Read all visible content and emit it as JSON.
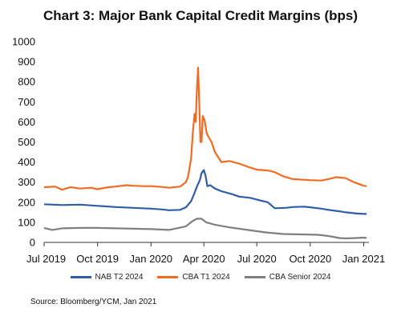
{
  "title": "Chart 3: Major Bank Capital Credit Margins (bps)",
  "source": "Source: Bloomberg/YCM, Jan 2021",
  "chart_data": {
    "type": "line",
    "title": "Chart 3: Major Bank Capital Credit Margins (bps)",
    "xlabel": "",
    "ylabel": "",
    "ylim": [
      0,
      1000
    ],
    "yticks": [
      0,
      100,
      200,
      300,
      400,
      500,
      600,
      700,
      800,
      900,
      1000
    ],
    "xlim": [
      "2019-07-01",
      "2021-01-10"
    ],
    "xticks": [
      {
        "date": "2019-07-01",
        "label": "Jul 2019"
      },
      {
        "date": "2019-10-01",
        "label": "Oct 2019"
      },
      {
        "date": "2020-01-01",
        "label": "Jan 2020"
      },
      {
        "date": "2020-04-01",
        "label": "Apr 2020"
      },
      {
        "date": "2020-07-01",
        "label": "Jul 2020"
      },
      {
        "date": "2020-10-01",
        "label": "Oct 2020"
      },
      {
        "date": "2021-01-01",
        "label": "Jan 2021"
      }
    ],
    "grid": false,
    "legend_position": "bottom",
    "series": [
      {
        "name": "NAB T2 2024",
        "color": "#2e5ea8",
        "points": [
          [
            "2019-07-01",
            190
          ],
          [
            "2019-08-01",
            186
          ],
          [
            "2019-09-01",
            188
          ],
          [
            "2019-10-01",
            182
          ],
          [
            "2019-11-01",
            176
          ],
          [
            "2019-12-01",
            172
          ],
          [
            "2020-01-01",
            168
          ],
          [
            "2020-01-20",
            164
          ],
          [
            "2020-02-01",
            160
          ],
          [
            "2020-02-20",
            162
          ],
          [
            "2020-03-01",
            175
          ],
          [
            "2020-03-10",
            205
          ],
          [
            "2020-03-15",
            240
          ],
          [
            "2020-03-20",
            278
          ],
          [
            "2020-03-25",
            310
          ],
          [
            "2020-03-28",
            345
          ],
          [
            "2020-04-01",
            360
          ],
          [
            "2020-04-04",
            330
          ],
          [
            "2020-04-07",
            280
          ],
          [
            "2020-04-12",
            285
          ],
          [
            "2020-04-20",
            268
          ],
          [
            "2020-05-01",
            255
          ],
          [
            "2020-05-20",
            240
          ],
          [
            "2020-06-01",
            228
          ],
          [
            "2020-06-20",
            222
          ],
          [
            "2020-07-01",
            213
          ],
          [
            "2020-07-20",
            200
          ],
          [
            "2020-08-01",
            170
          ],
          [
            "2020-08-20",
            172
          ],
          [
            "2020-09-01",
            176
          ],
          [
            "2020-09-20",
            178
          ],
          [
            "2020-10-01",
            175
          ],
          [
            "2020-10-20",
            168
          ],
          [
            "2020-11-01",
            162
          ],
          [
            "2020-11-20",
            155
          ],
          [
            "2020-12-01",
            150
          ],
          [
            "2020-12-20",
            144
          ],
          [
            "2021-01-01",
            142
          ],
          [
            "2021-01-06",
            142
          ]
        ]
      },
      {
        "name": "CBA T1 2024",
        "color": "#f26b21",
        "points": [
          [
            "2019-07-01",
            275
          ],
          [
            "2019-07-20",
            278
          ],
          [
            "2019-08-01",
            262
          ],
          [
            "2019-08-15",
            275
          ],
          [
            "2019-09-01",
            268
          ],
          [
            "2019-09-20",
            272
          ],
          [
            "2019-10-01",
            265
          ],
          [
            "2019-10-20",
            275
          ],
          [
            "2019-11-01",
            278
          ],
          [
            "2019-11-20",
            285
          ],
          [
            "2019-12-01",
            282
          ],
          [
            "2019-12-20",
            280
          ],
          [
            "2020-01-01",
            280
          ],
          [
            "2020-01-20",
            276
          ],
          [
            "2020-02-01",
            272
          ],
          [
            "2020-02-20",
            278
          ],
          [
            "2020-03-01",
            300
          ],
          [
            "2020-03-05",
            330
          ],
          [
            "2020-03-10",
            420
          ],
          [
            "2020-03-13",
            550
          ],
          [
            "2020-03-16",
            640
          ],
          [
            "2020-03-18",
            600
          ],
          [
            "2020-03-20",
            760
          ],
          [
            "2020-03-22",
            870
          ],
          [
            "2020-03-24",
            700
          ],
          [
            "2020-03-26",
            500
          ],
          [
            "2020-03-28",
            500
          ],
          [
            "2020-03-30",
            630
          ],
          [
            "2020-04-02",
            610
          ],
          [
            "2020-04-06",
            540
          ],
          [
            "2020-04-10",
            520
          ],
          [
            "2020-04-14",
            500
          ],
          [
            "2020-04-20",
            450
          ],
          [
            "2020-05-01",
            400
          ],
          [
            "2020-05-15",
            405
          ],
          [
            "2020-06-01",
            392
          ],
          [
            "2020-06-20",
            372
          ],
          [
            "2020-07-01",
            362
          ],
          [
            "2020-07-20",
            358
          ],
          [
            "2020-08-01",
            350
          ],
          [
            "2020-08-15",
            330
          ],
          [
            "2020-09-01",
            315
          ],
          [
            "2020-09-20",
            312
          ],
          [
            "2020-10-01",
            310
          ],
          [
            "2020-10-20",
            308
          ],
          [
            "2020-11-01",
            315
          ],
          [
            "2020-11-15",
            325
          ],
          [
            "2020-12-01",
            320
          ],
          [
            "2020-12-15",
            300
          ],
          [
            "2021-01-01",
            282
          ],
          [
            "2021-01-06",
            280
          ]
        ]
      },
      {
        "name": "CBA Senior 2024",
        "color": "#7f7f7f",
        "points": [
          [
            "2019-07-01",
            72
          ],
          [
            "2019-07-15",
            62
          ],
          [
            "2019-08-01",
            70
          ],
          [
            "2019-09-01",
            72
          ],
          [
            "2019-10-01",
            72
          ],
          [
            "2019-11-01",
            70
          ],
          [
            "2019-12-01",
            68
          ],
          [
            "2020-01-01",
            66
          ],
          [
            "2020-02-01",
            62
          ],
          [
            "2020-03-01",
            80
          ],
          [
            "2020-03-12",
            105
          ],
          [
            "2020-03-20",
            118
          ],
          [
            "2020-03-28",
            118
          ],
          [
            "2020-04-05",
            100
          ],
          [
            "2020-04-20",
            88
          ],
          [
            "2020-05-15",
            75
          ],
          [
            "2020-06-15",
            62
          ],
          [
            "2020-07-15",
            50
          ],
          [
            "2020-08-15",
            42
          ],
          [
            "2020-09-15",
            40
          ],
          [
            "2020-10-15",
            38
          ],
          [
            "2020-11-01",
            32
          ],
          [
            "2020-11-20",
            22
          ],
          [
            "2020-12-01",
            20
          ],
          [
            "2020-12-20",
            22
          ],
          [
            "2021-01-01",
            24
          ],
          [
            "2021-01-06",
            22
          ]
        ]
      }
    ]
  }
}
